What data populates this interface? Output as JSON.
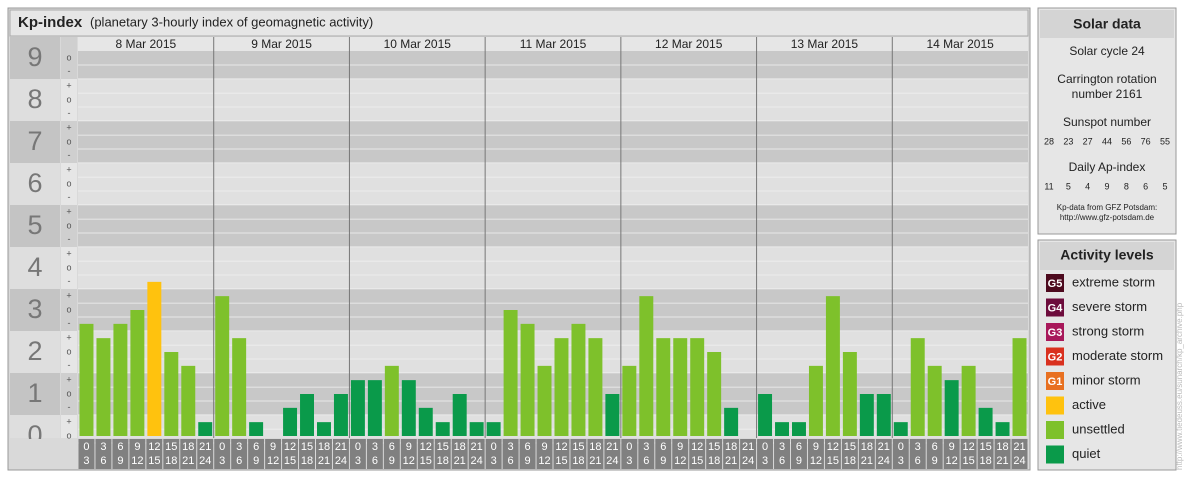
{
  "chart_data": {
    "type": "bar",
    "title": "Kp-index",
    "subtitle": "(planetary 3-hourly index of geomagnetic activity)",
    "days": [
      "8 Mar 2015",
      "9 Mar 2015",
      "10 Mar 2015",
      "11 Mar 2015",
      "12 Mar 2015",
      "13 Mar 2015",
      "14 Mar 2015"
    ],
    "hours": [
      [
        0,
        3
      ],
      [
        3,
        6
      ],
      [
        6,
        9
      ],
      [
        9,
        12
      ],
      [
        12,
        15
      ],
      [
        15,
        18
      ],
      [
        18,
        21
      ],
      [
        21,
        24
      ]
    ],
    "values": [
      2.67,
      2.33,
      2.67,
      3,
      3.67,
      2,
      1.67,
      0.33,
      3.33,
      2.33,
      0.33,
      0,
      0.67,
      1,
      0.33,
      1,
      1.33,
      1.33,
      1.67,
      1.33,
      0.67,
      0.33,
      1,
      0.33,
      0.33,
      3,
      2.67,
      1.67,
      2.33,
      2.67,
      2.33,
      1,
      1.67,
      3.33,
      2.33,
      2.33,
      2.33,
      2,
      0.67,
      0,
      1,
      0.33,
      0.33,
      1.67,
      3.33,
      2,
      1,
      1,
      0.33,
      2.33,
      1.67,
      1.33,
      1.67,
      0.67,
      0.33,
      2.33
    ],
    "colors": [
      "#7ec12b",
      "#7ec12b",
      "#7ec12b",
      "#7ec12b",
      "#ffc20e",
      "#7ec12b",
      "#7ec12b",
      "#0a9a4a",
      "#7ec12b",
      "#7ec12b",
      "#0a9a4a",
      "#0a9a4a",
      "#0a9a4a",
      "#0a9a4a",
      "#0a9a4a",
      "#0a9a4a",
      "#0a9a4a",
      "#0a9a4a",
      "#7ec12b",
      "#0a9a4a",
      "#0a9a4a",
      "#0a9a4a",
      "#0a9a4a",
      "#0a9a4a",
      "#0a9a4a",
      "#7ec12b",
      "#7ec12b",
      "#7ec12b",
      "#7ec12b",
      "#7ec12b",
      "#7ec12b",
      "#0a9a4a",
      "#7ec12b",
      "#7ec12b",
      "#7ec12b",
      "#7ec12b",
      "#7ec12b",
      "#7ec12b",
      "#0a9a4a",
      "#0a9a4a",
      "#0a9a4a",
      "#0a9a4a",
      "#0a9a4a",
      "#7ec12b",
      "#7ec12b",
      "#7ec12b",
      "#0a9a4a",
      "#0a9a4a",
      "#0a9a4a",
      "#7ec12b",
      "#7ec12b",
      "#0a9a4a",
      "#7ec12b",
      "#0a9a4a",
      "#0a9a4a",
      "#7ec12b"
    ],
    "ylim": [
      0,
      9.5
    ],
    "yticks": [
      0,
      1,
      2,
      3,
      4,
      5,
      6,
      7,
      8,
      9
    ],
    "minor_ticks": [
      {
        "value": 0,
        "label": "o"
      },
      {
        "value": 0.33,
        "label": "+"
      },
      {
        "value": 0.67,
        "label": "-"
      },
      {
        "value": 1,
        "label": "o"
      },
      {
        "value": 1.33,
        "label": "+"
      },
      {
        "value": 1.67,
        "label": "-"
      },
      {
        "value": 2,
        "label": "o"
      },
      {
        "value": 2.33,
        "label": "+"
      },
      {
        "value": 2.67,
        "label": "-"
      },
      {
        "value": 3,
        "label": "o"
      },
      {
        "value": 3.33,
        "label": "+"
      },
      {
        "value": 3.67,
        "label": "-"
      },
      {
        "value": 4,
        "label": "o"
      },
      {
        "value": 4.33,
        "label": "+"
      },
      {
        "value": 4.67,
        "label": "-"
      },
      {
        "value": 5,
        "label": "o"
      },
      {
        "value": 5.33,
        "label": "+"
      },
      {
        "value": 5.67,
        "label": "-"
      },
      {
        "value": 6,
        "label": "o"
      },
      {
        "value": 6.33,
        "label": "+"
      },
      {
        "value": 6.67,
        "label": "-"
      },
      {
        "value": 7,
        "label": "o"
      },
      {
        "value": 7.33,
        "label": "+"
      },
      {
        "value": 7.67,
        "label": "-"
      },
      {
        "value": 8,
        "label": "o"
      },
      {
        "value": 8.33,
        "label": "+"
      },
      {
        "value": 8.67,
        "label": "-"
      },
      {
        "value": 9,
        "label": "o"
      }
    ],
    "grid": true
  },
  "sidebar": {
    "solar_title": "Solar data",
    "solar_cycle": "Solar cycle 24",
    "carrington": [
      "Carrington rotation",
      "number 2161"
    ],
    "sunspot_title": "Sunspot number",
    "sunspots": [
      28,
      23,
      27,
      44,
      56,
      76,
      55
    ],
    "ap_title": "Daily Ap-index",
    "ap": [
      11,
      5,
      4,
      9,
      8,
      6,
      5
    ],
    "source": [
      "Kp-data from GFZ Potsdam:",
      "http://www.gfz-potsdam.de"
    ],
    "levels_title": "Activity levels",
    "levels": [
      {
        "code": "G5",
        "label": "extreme storm",
        "color": "#4d0a1e"
      },
      {
        "code": "G4",
        "label": "severe storm",
        "color": "#6d0c3c"
      },
      {
        "code": "G3",
        "label": "strong storm",
        "color": "#a8185a"
      },
      {
        "code": "G2",
        "label": "moderate storm",
        "color": "#d9301e"
      },
      {
        "code": "G1",
        "label": "minor storm",
        "color": "#e87020"
      },
      {
        "label": "active",
        "color": "#ffc20e"
      },
      {
        "label": "unsettled",
        "color": "#7ec12b"
      },
      {
        "label": "quiet",
        "color": "#0a9a4a"
      }
    ],
    "watermark": "http://www.tiedeuss.eu/sunarch/kp_archive.php"
  }
}
